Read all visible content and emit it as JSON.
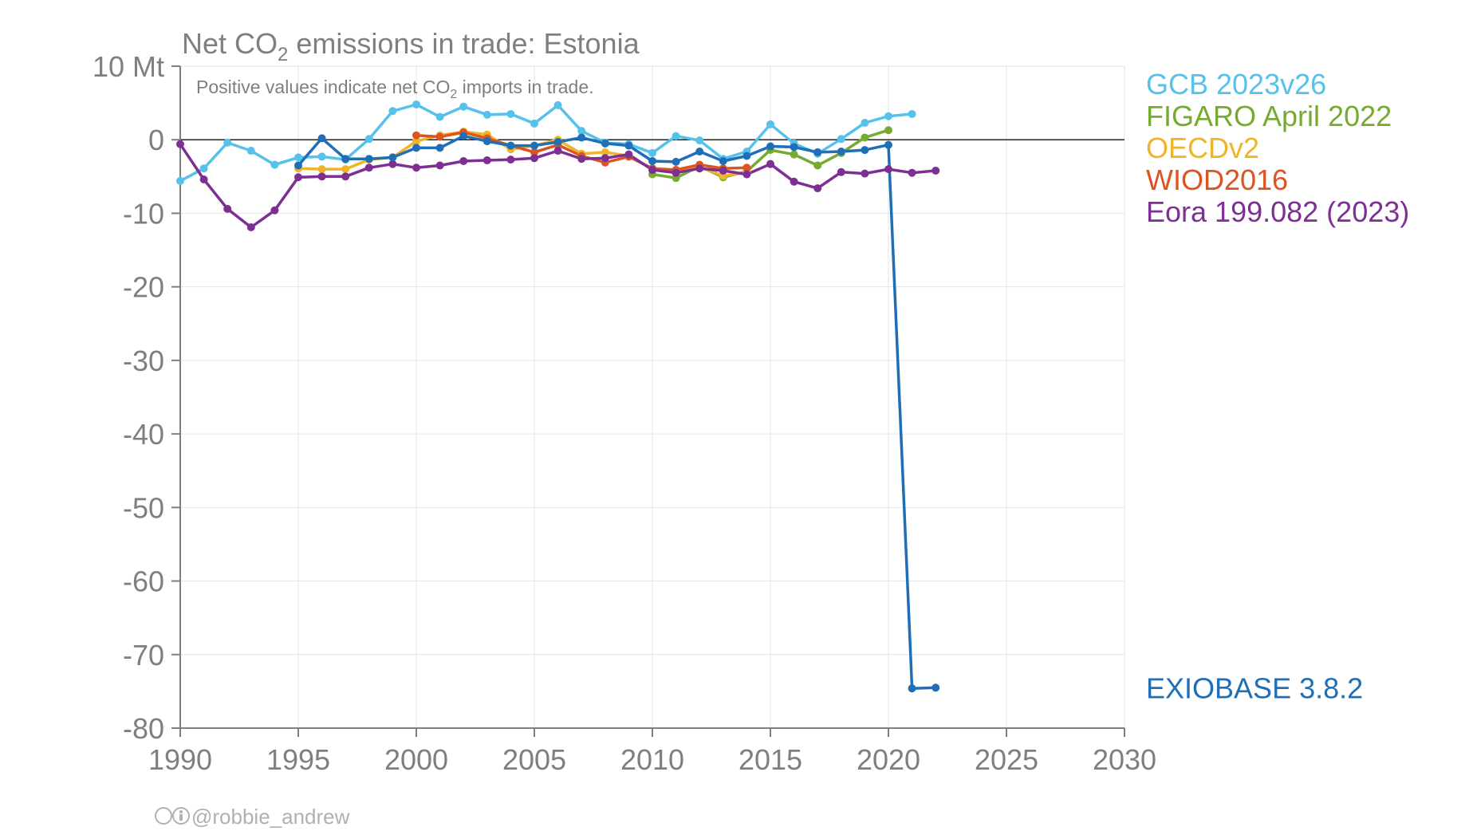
{
  "chart_data": {
    "type": "line",
    "title_prefix": "Net CO",
    "title_sub": "2",
    "title_suffix": " emissions in trade: Estonia",
    "subtitle_prefix": "Positive values indicate net CO",
    "subtitle_sub": "2",
    "subtitle_suffix": " imports in trade.",
    "ylabel_top": "10 Mt",
    "xlim": [
      1990,
      2030
    ],
    "ylim": [
      -80,
      10
    ],
    "x_ticks": [
      1990,
      1995,
      2000,
      2005,
      2010,
      2015,
      2020,
      2025,
      2030
    ],
    "y_ticks": [
      0,
      -10,
      -20,
      -30,
      -40,
      -50,
      -60,
      -70,
      -80
    ],
    "grid": true,
    "zero_line": true,
    "series": [
      {
        "name": "GCB 2023v26",
        "color": "#56c1ea",
        "x": [
          1990,
          1991,
          1992,
          1993,
          1994,
          1995,
          1996,
          1997,
          1998,
          1999,
          2000,
          2001,
          2002,
          2003,
          2004,
          2005,
          2006,
          2007,
          2008,
          2009,
          2010,
          2011,
          2012,
          2013,
          2014,
          2015,
          2016,
          2017,
          2018,
          2019,
          2020,
          2021
        ],
        "values": [
          -5.6,
          -3.9,
          -0.4,
          -1.5,
          -3.4,
          -2.4,
          -2.3,
          -2.7,
          0.1,
          3.9,
          4.8,
          3.1,
          4.5,
          3.4,
          3.5,
          2.2,
          4.7,
          1.2,
          -0.4,
          -0.6,
          -1.8,
          0.5,
          -0.1,
          -2.6,
          -1.6,
          2.1,
          -0.5,
          -1.9,
          0.1,
          2.3,
          3.2,
          3.5
        ]
      },
      {
        "name": "FIGARO April 2022",
        "color": "#76ab2f",
        "x": [
          2010,
          2011,
          2012,
          2013,
          2014,
          2015,
          2016,
          2017,
          2018,
          2019,
          2020
        ],
        "values": [
          -4.7,
          -5.2,
          -3.6,
          -5.1,
          -4.3,
          -1.4,
          -2.0,
          -3.5,
          -1.8,
          0.3,
          1.3
        ]
      },
      {
        "name": "OECDv2",
        "color": "#f0b429",
        "x": [
          1995,
          1996,
          1997,
          1998,
          1999,
          2000,
          2001,
          2002,
          2003,
          2004,
          2005,
          2006,
          2007,
          2008,
          2009,
          2010,
          2011,
          2012,
          2013,
          2014
        ],
        "values": [
          -3.9,
          -4.0,
          -4.0,
          -2.7,
          -2.4,
          -0.2,
          0.6,
          1.1,
          0.7,
          -1.3,
          -0.8,
          0.0,
          -1.9,
          -1.7,
          -2.2,
          -4.0,
          -4.5,
          -3.7,
          -4.9,
          -4.5
        ]
      },
      {
        "name": "WIOD2016",
        "color": "#dd5322",
        "x": [
          2000,
          2001,
          2002,
          2003,
          2004,
          2005,
          2006,
          2007,
          2008,
          2009,
          2010,
          2011,
          2012,
          2013,
          2014
        ],
        "values": [
          0.6,
          0.4,
          1.0,
          0.2,
          -0.8,
          -1.7,
          -0.7,
          -2.2,
          -3.1,
          -2.3,
          -3.9,
          -4.1,
          -3.4,
          -3.9,
          -3.8
        ]
      },
      {
        "name": "Eora 199.082 (2023)",
        "color": "#7d2f92",
        "x": [
          1990,
          1991,
          1992,
          1993,
          1994,
          1995,
          1996,
          1997,
          1998,
          1999,
          2000,
          2001,
          2002,
          2003,
          2004,
          2005,
          2006,
          2007,
          2008,
          2009,
          2010,
          2011,
          2012,
          2013,
          2014,
          2015,
          2016,
          2017,
          2018,
          2019,
          2020,
          2021,
          2022
        ],
        "values": [
          -0.6,
          -5.4,
          -9.4,
          -11.9,
          -9.6,
          -5.1,
          -5.0,
          -5.0,
          -3.8,
          -3.3,
          -3.8,
          -3.5,
          -2.9,
          -2.8,
          -2.7,
          -2.5,
          -1.5,
          -2.6,
          -2.5,
          -2.0,
          -4.1,
          -4.5,
          -3.9,
          -4.2,
          -4.7,
          -3.3,
          -5.7,
          -6.6,
          -4.4,
          -4.6,
          -4.0,
          -4.5,
          -4.2
        ]
      },
      {
        "name": "EXIOBASE 3.8.2",
        "color": "#1f6fb8",
        "x": [
          1995,
          1996,
          1997,
          1998,
          1999,
          2000,
          2001,
          2002,
          2003,
          2004,
          2005,
          2006,
          2007,
          2008,
          2009,
          2010,
          2011,
          2012,
          2013,
          2014,
          2015,
          2016,
          2017,
          2018,
          2019,
          2020,
          2021,
          2022
        ],
        "values": [
          -3.5,
          0.2,
          -2.6,
          -2.6,
          -2.4,
          -1.1,
          -1.1,
          0.5,
          -0.2,
          -0.8,
          -0.8,
          -0.3,
          0.3,
          -0.5,
          -0.8,
          -2.9,
          -3.0,
          -1.6,
          -2.9,
          -2.2,
          -0.9,
          -1.0,
          -1.7,
          -1.6,
          -1.4,
          -0.7,
          -74.6,
          -74.5
        ]
      }
    ],
    "legend_placement": "right",
    "credit": "@robbie_andrew"
  }
}
